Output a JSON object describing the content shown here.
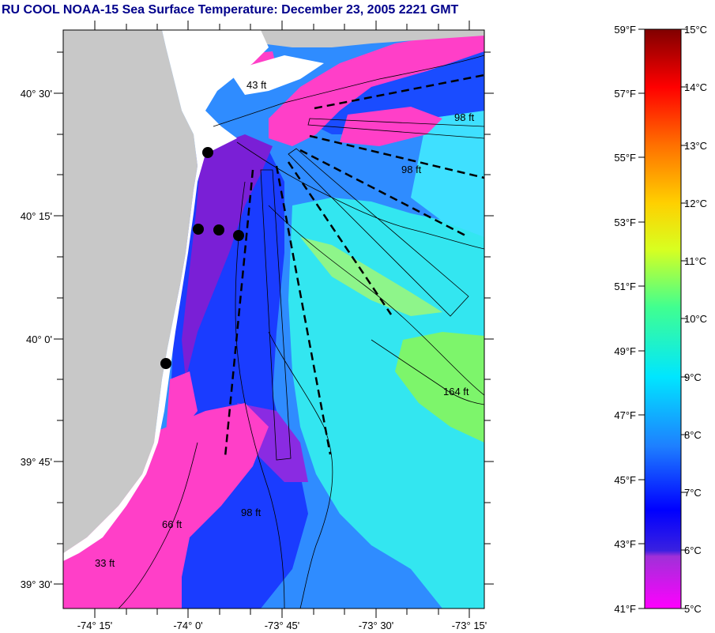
{
  "title": "RU COOL  NOAA-15  Sea Surface Temperature:  December 23, 2005 2221 GMT",
  "map": {
    "lat_labels": [
      "40° 30'",
      "40° 15'",
      "40° 0'",
      "39° 45'",
      "39° 30'"
    ],
    "lon_labels": [
      "-74° 15'",
      "-74° 0'",
      "-73° 45'",
      "-73° 30'",
      "-73° 15'"
    ],
    "contour_labels": [
      "43 ft",
      "98 ft",
      "98 ft",
      "164 ft",
      "66 ft",
      "98 ft",
      "33 ft"
    ],
    "colors": {
      "land": "#c8c8c8",
      "shelf": "#ffffff",
      "magenta": "#ff3fc8",
      "purple": "#7a1fd6",
      "blue": "#1a3cff",
      "azure": "#2f8cff",
      "cyan": "#33e6f0",
      "green": "#7df56b"
    }
  },
  "colorbar": {
    "fahrenheit_labels": [
      "59°F",
      "57°F",
      "55°F",
      "53°F",
      "51°F",
      "49°F",
      "47°F",
      "45°F",
      "43°F",
      "41°F"
    ],
    "celsius_labels": [
      "15°C",
      "14°C",
      "13°C",
      "12°C",
      "11°C",
      "10°C",
      "9°C",
      "8°C",
      "7°C",
      "6°C",
      "5°C"
    ],
    "stops": [
      "#ff00ff",
      "#8a2be2",
      "#0000ff",
      "#1e90ff",
      "#00ffff",
      "#00ff80",
      "#ffff00",
      "#ff8c00",
      "#ff0000",
      "#8b0000"
    ]
  }
}
